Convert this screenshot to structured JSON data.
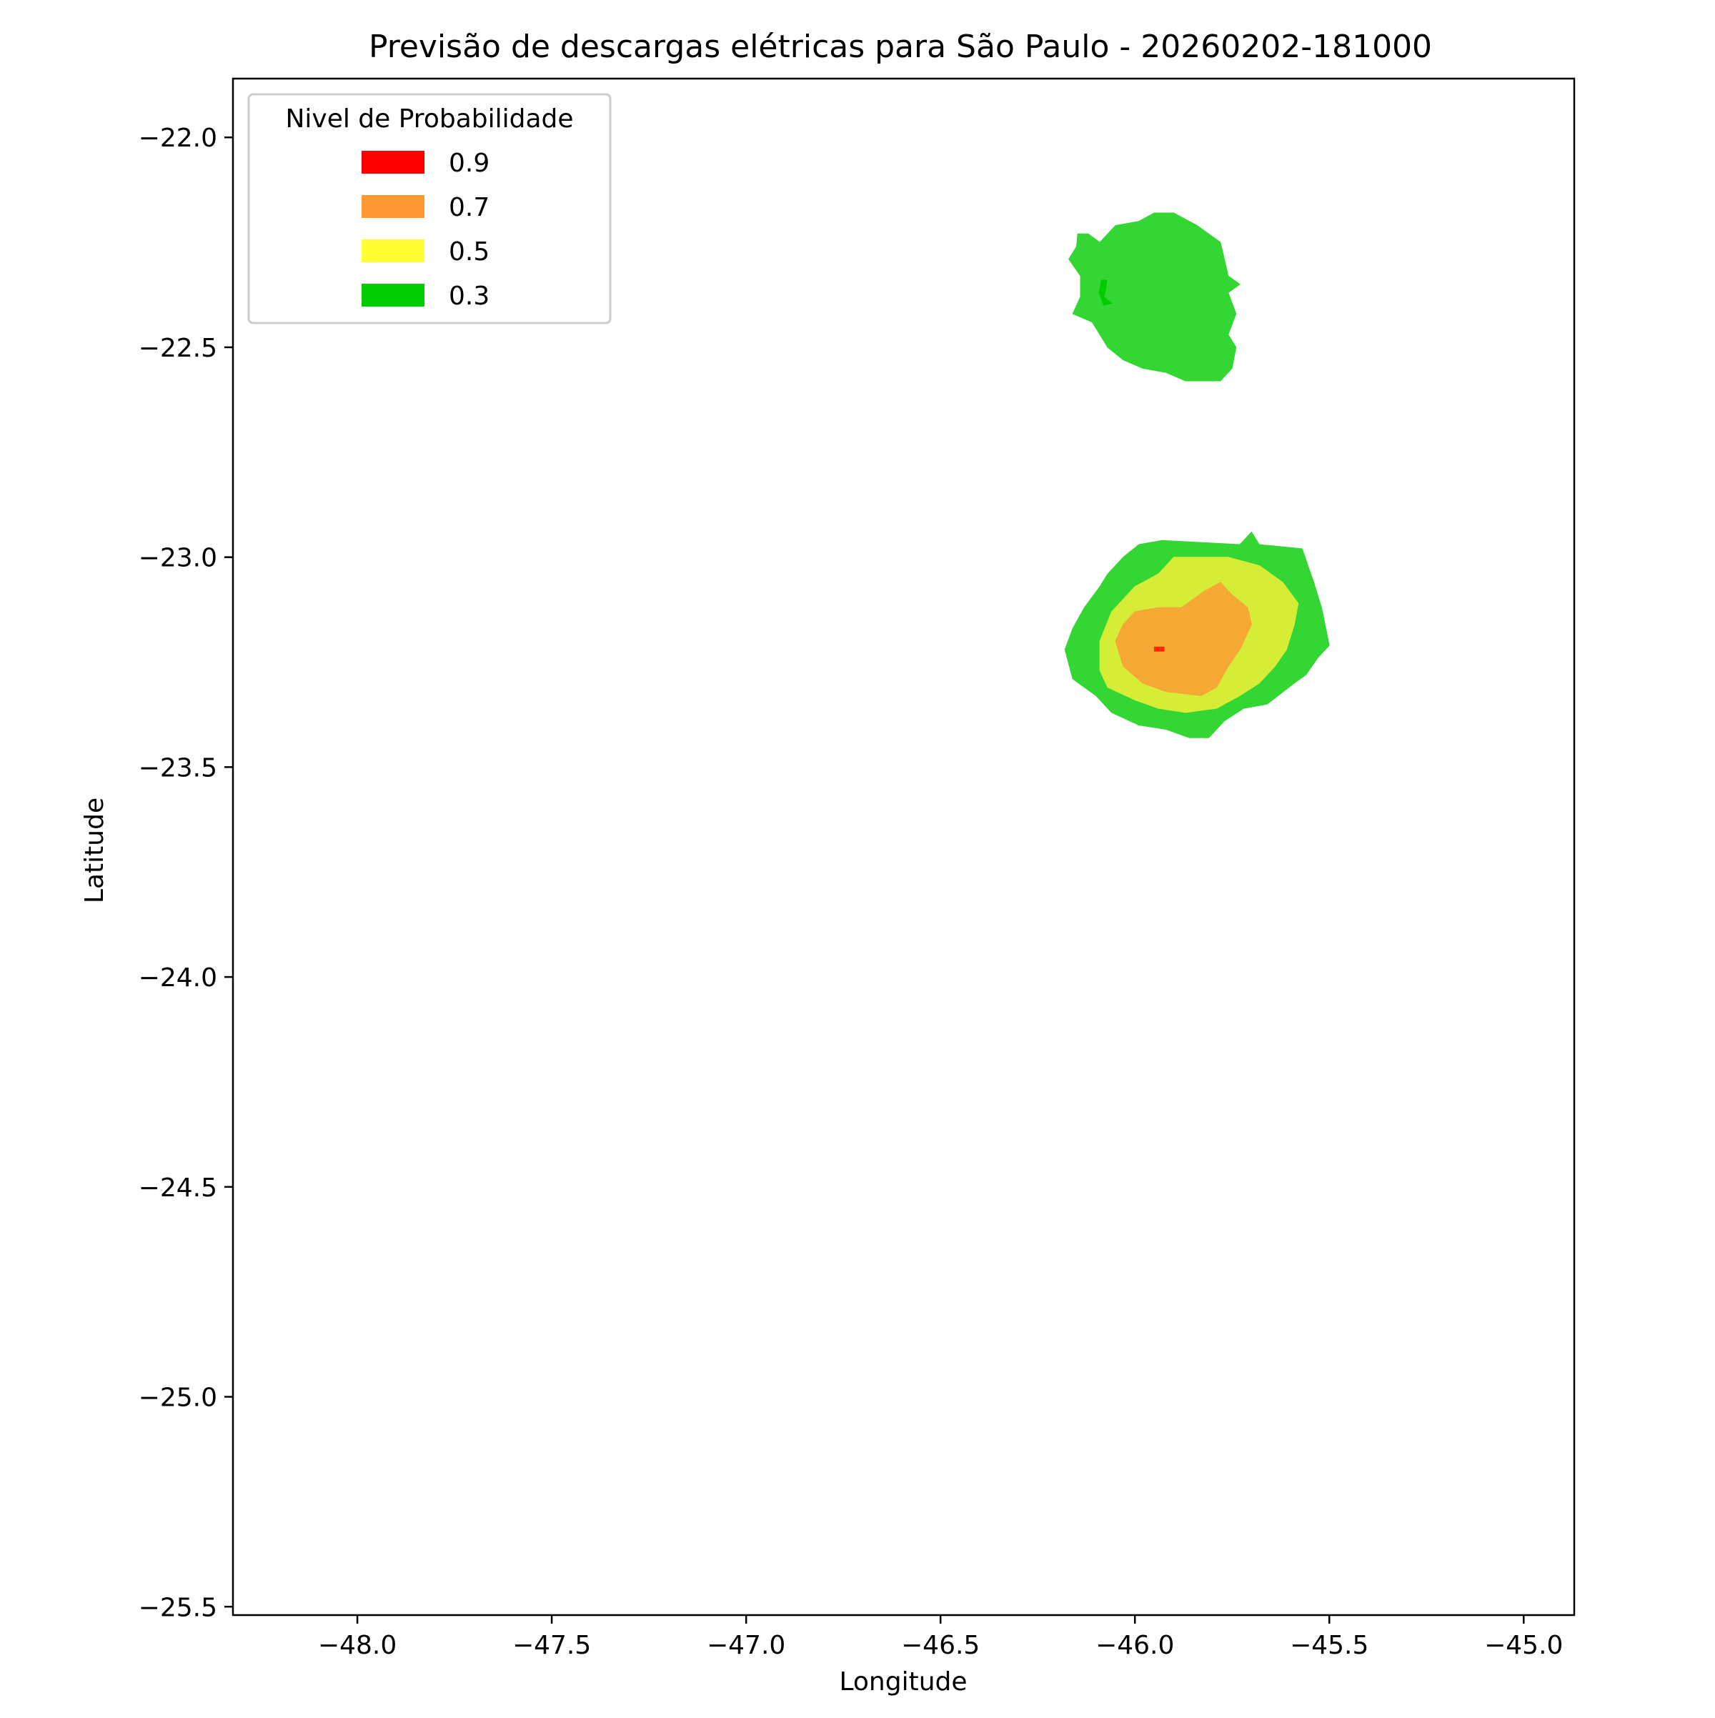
{
  "chart_data": {
    "type": "contourf",
    "title": "Previsão de descargas elétricas para São Paulo - 20260202-181000",
    "xlabel": "Longitude",
    "ylabel": "Latitude",
    "xlim": [
      -48.32,
      -44.87
    ],
    "ylim": [
      -25.52,
      -21.86
    ],
    "xticks": [
      -48.0,
      -47.5,
      -47.0,
      -46.5,
      -46.0,
      -45.5,
      -45.0
    ],
    "xtick_labels": [
      "−48.0",
      "−47.5",
      "−47.0",
      "−46.5",
      "−46.0",
      "−45.5",
      "−45.0"
    ],
    "yticks": [
      -22.0,
      -22.5,
      -23.0,
      -23.5,
      -24.0,
      -24.5,
      -25.0,
      -25.5
    ],
    "ytick_labels": [
      "−22.0",
      "−22.5",
      "−23.0",
      "−23.5",
      "−24.0",
      "−24.5",
      "−25.0",
      "−25.5"
    ],
    "grid": false,
    "legend": {
      "title": "Nivel de Probabilidade",
      "position": "upper-left",
      "entries": [
        {
          "label": "0.9",
          "color": "#ff0000"
        },
        {
          "label": "0.7",
          "color": "#ff9933"
        },
        {
          "label": "0.5",
          "color": "#ffff33"
        },
        {
          "label": "0.3",
          "color": "#00cc00"
        }
      ]
    },
    "regions": [
      {
        "name": "north-cell-level-0.3",
        "level": 0.3,
        "color": "#33d633",
        "polygon": [
          [
            -46.147,
            -22.23
          ],
          [
            -46.12,
            -22.23
          ],
          [
            -46.09,
            -22.25
          ],
          [
            -46.05,
            -22.21
          ],
          [
            -45.99,
            -22.2
          ],
          [
            -45.95,
            -22.18
          ],
          [
            -45.9,
            -22.18
          ],
          [
            -45.84,
            -22.21
          ],
          [
            -45.78,
            -22.25
          ],
          [
            -45.76,
            -22.33
          ],
          [
            -45.73,
            -22.35
          ],
          [
            -45.76,
            -22.37
          ],
          [
            -45.74,
            -22.42
          ],
          [
            -45.76,
            -22.47
          ],
          [
            -45.74,
            -22.5
          ],
          [
            -45.75,
            -22.55
          ],
          [
            -45.78,
            -22.58
          ],
          [
            -45.87,
            -22.58
          ],
          [
            -45.92,
            -22.56
          ],
          [
            -45.98,
            -22.55
          ],
          [
            -46.03,
            -22.53
          ],
          [
            -46.07,
            -22.5
          ],
          [
            -46.09,
            -22.47
          ],
          [
            -46.11,
            -22.44
          ],
          [
            -46.16,
            -22.42
          ],
          [
            -46.14,
            -22.38
          ],
          [
            -46.14,
            -22.33
          ],
          [
            -46.17,
            -22.29
          ],
          [
            -46.15,
            -22.26
          ]
        ]
      },
      {
        "name": "north-cell-level-0.3-contour-mark",
        "level": 0.3,
        "color": "#00cc00",
        "polygon": [
          [
            -46.086,
            -22.34
          ],
          [
            -46.072,
            -22.34
          ],
          [
            -46.075,
            -22.36
          ],
          [
            -46.08,
            -22.38
          ],
          [
            -46.06,
            -22.395
          ],
          [
            -46.08,
            -22.4
          ],
          [
            -46.092,
            -22.37
          ]
        ]
      },
      {
        "name": "south-cell-level-0.3",
        "level": 0.3,
        "color": "#33d633",
        "polygon": [
          [
            -46.03,
            -23.0
          ],
          [
            -45.99,
            -22.97
          ],
          [
            -45.93,
            -22.96
          ],
          [
            -45.73,
            -22.97
          ],
          [
            -45.7,
            -22.94
          ],
          [
            -45.68,
            -22.97
          ],
          [
            -45.57,
            -22.98
          ],
          [
            -45.54,
            -23.06
          ],
          [
            -45.52,
            -23.12
          ],
          [
            -45.5,
            -23.21
          ],
          [
            -45.53,
            -23.24
          ],
          [
            -45.56,
            -23.28
          ],
          [
            -45.59,
            -23.3
          ],
          [
            -45.66,
            -23.35
          ],
          [
            -45.72,
            -23.36
          ],
          [
            -45.77,
            -23.39
          ],
          [
            -45.81,
            -23.43
          ],
          [
            -45.86,
            -23.43
          ],
          [
            -45.92,
            -23.41
          ],
          [
            -45.99,
            -23.4
          ],
          [
            -46.06,
            -23.37
          ],
          [
            -46.1,
            -23.33
          ],
          [
            -46.16,
            -23.29
          ],
          [
            -46.18,
            -23.22
          ],
          [
            -46.16,
            -23.17
          ],
          [
            -46.13,
            -23.12
          ],
          [
            -46.09,
            -23.07
          ],
          [
            -46.07,
            -23.04
          ]
        ]
      },
      {
        "name": "south-cell-level-0.5",
        "level": 0.5,
        "color": "#d6ed38",
        "polygon": [
          [
            -46.0,
            -23.07
          ],
          [
            -45.94,
            -23.04
          ],
          [
            -45.9,
            -23.0
          ],
          [
            -45.76,
            -23.0
          ],
          [
            -45.68,
            -23.02
          ],
          [
            -45.62,
            -23.06
          ],
          [
            -45.58,
            -23.11
          ],
          [
            -45.59,
            -23.16
          ],
          [
            -45.61,
            -23.22
          ],
          [
            -45.64,
            -23.26
          ],
          [
            -45.68,
            -23.3
          ],
          [
            -45.73,
            -23.33
          ],
          [
            -45.79,
            -23.36
          ],
          [
            -45.87,
            -23.37
          ],
          [
            -45.94,
            -23.36
          ],
          [
            -46.0,
            -23.34
          ],
          [
            -46.07,
            -23.31
          ],
          [
            -46.09,
            -23.27
          ],
          [
            -46.09,
            -23.2
          ],
          [
            -46.06,
            -23.13
          ]
        ]
      },
      {
        "name": "south-cell-level-0.7",
        "level": 0.7,
        "color": "#f6a835",
        "polygon": [
          [
            -46.0,
            -23.13
          ],
          [
            -45.94,
            -23.12
          ],
          [
            -45.88,
            -23.12
          ],
          [
            -45.82,
            -23.08
          ],
          [
            -45.78,
            -23.06
          ],
          [
            -45.75,
            -23.09
          ],
          [
            -45.71,
            -23.12
          ],
          [
            -45.7,
            -23.16
          ],
          [
            -45.73,
            -23.22
          ],
          [
            -45.76,
            -23.26
          ],
          [
            -45.79,
            -23.31
          ],
          [
            -45.83,
            -23.33
          ],
          [
            -45.92,
            -23.32
          ],
          [
            -45.98,
            -23.3
          ],
          [
            -46.03,
            -23.26
          ],
          [
            -46.05,
            -23.2
          ],
          [
            -46.03,
            -23.16
          ]
        ]
      },
      {
        "name": "south-cell-level-0.9",
        "level": 0.9,
        "color": "#ff2a00",
        "polygon": [
          [
            -45.95,
            -23.214
          ],
          [
            -45.925,
            -23.214
          ],
          [
            -45.925,
            -23.224
          ],
          [
            -45.95,
            -23.224
          ]
        ]
      }
    ]
  }
}
